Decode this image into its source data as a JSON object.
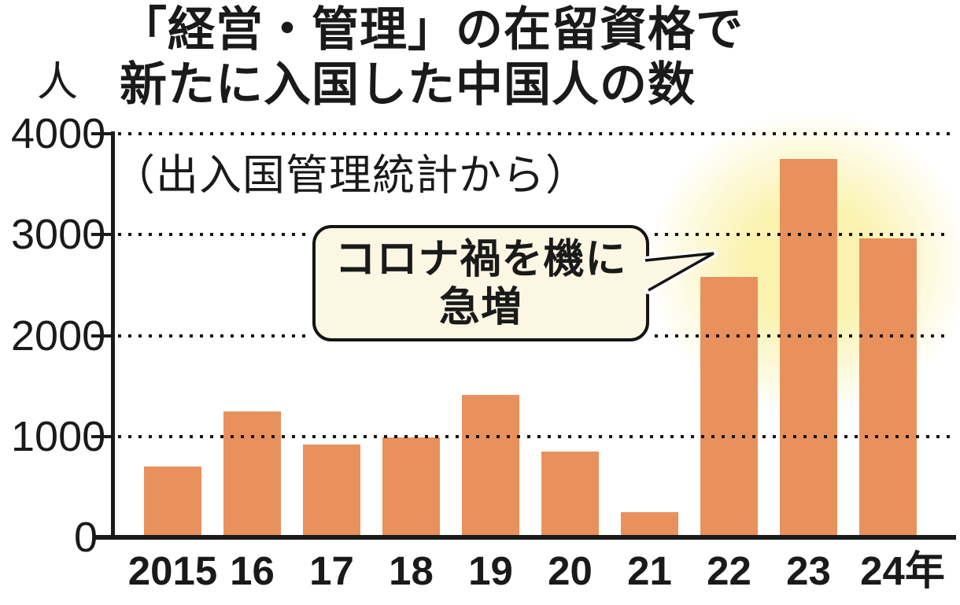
{
  "figure": {
    "title_line1": "「経営・管理」の在留資格で",
    "title_line2": "新たに入国した中国人の数",
    "source_note": "（出入国管理統計から）",
    "unit_label": "人",
    "callout": {
      "line1": "コロナ禍を機に",
      "line2": "急増"
    }
  },
  "colors": {
    "bar": "#e8915c",
    "halo": "#faf2ae",
    "bubble_bg": "#fbf7e3",
    "ink": "#1a1a1a"
  },
  "chart_data": {
    "type": "bar",
    "title": "「経営・管理」の在留資格で新たに入国した中国人の数",
    "subtitle": "（出入国管理統計から）",
    "ylabel": "人",
    "xlabel": "",
    "categories": [
      "2015",
      "16",
      "17",
      "18",
      "19",
      "20",
      "21",
      "22",
      "23",
      "24年"
    ],
    "values": [
      700,
      1250,
      920,
      990,
      1410,
      850,
      250,
      2580,
      3750,
      2960
    ],
    "ylim": [
      0,
      4000
    ],
    "yticks": [
      0,
      1000,
      2000,
      3000,
      4000
    ],
    "grid": "horizontal-dotted",
    "legend": "none",
    "annotation": {
      "text": "コロナ禍を機に急増",
      "target_category": "22",
      "highlight_categories": [
        "22",
        "23",
        "24年"
      ]
    }
  }
}
